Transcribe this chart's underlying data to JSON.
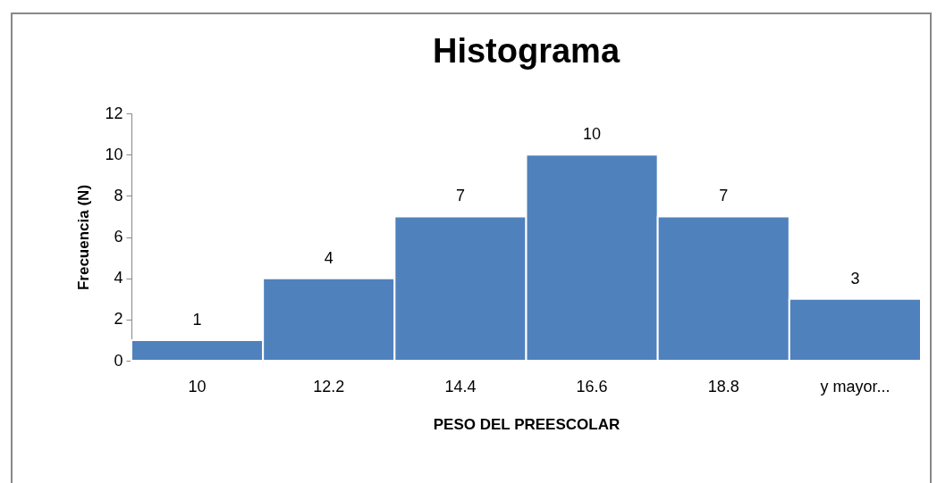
{
  "chart_data": {
    "type": "bar",
    "title": "Histograma",
    "xlabel": "PESO DEL PREESCOLAR",
    "ylabel": "Frecuencia (N)",
    "categories": [
      "10",
      "12.2",
      "14.4",
      "16.6",
      "18.8",
      "y mayor..."
    ],
    "values": [
      1,
      4,
      7,
      10,
      7,
      3
    ],
    "color": "#4f81bd",
    "ylim": [
      0,
      12
    ],
    "yticks": [
      0,
      2,
      4,
      6,
      8,
      10,
      12
    ],
    "data_labels": true
  }
}
